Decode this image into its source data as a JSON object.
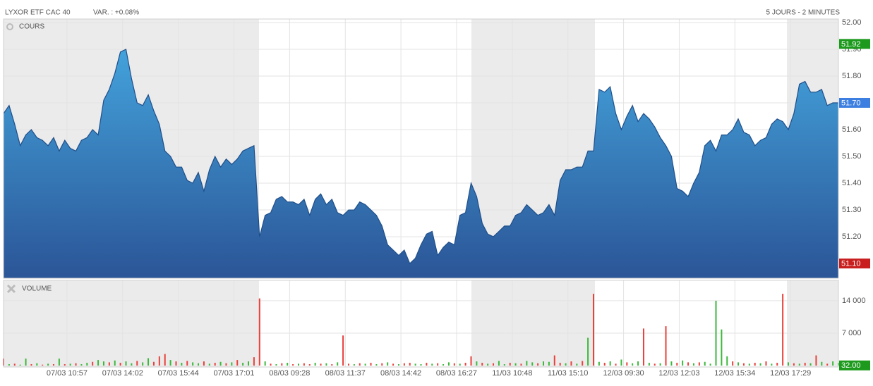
{
  "chart_data": [
    {
      "type": "area",
      "title": "LYXOR ETF CAC 40",
      "subtitle": "VAR. : +0.08%",
      "annotation": "5 JOURS - 2 MINUTES",
      "panel_label": "COURS",
      "color": "#1f4f8a",
      "grid": true,
      "values": [
        51.66,
        51.69,
        51.62,
        51.54,
        51.58,
        51.6,
        51.57,
        51.56,
        51.54,
        51.57,
        51.52,
        51.56,
        51.53,
        51.52,
        51.56,
        51.57,
        51.6,
        51.58,
        51.71,
        51.75,
        51.81,
        51.89,
        51.9,
        51.79,
        51.7,
        51.69,
        51.73,
        51.67,
        51.62,
        51.52,
        51.5,
        51.46,
        51.46,
        51.41,
        51.4,
        51.44,
        51.37,
        51.45,
        51.5,
        51.46,
        51.49,
        51.47,
        51.49,
        51.52,
        51.53,
        51.54,
        51.2,
        51.28,
        51.29,
        51.34,
        51.35,
        51.33,
        51.33,
        51.32,
        51.34,
        51.28,
        51.34,
        51.36,
        51.32,
        51.34,
        51.29,
        51.28,
        51.3,
        51.3,
        51.33,
        51.32,
        51.3,
        51.28,
        51.24,
        51.17,
        51.15,
        51.13,
        51.15,
        51.1,
        51.12,
        51.17,
        51.21,
        51.22,
        51.13,
        51.16,
        51.18,
        51.17,
        51.28,
        51.29,
        51.4,
        51.35,
        51.25,
        51.21,
        51.2,
        51.22,
        51.24,
        51.24,
        51.28,
        51.29,
        51.32,
        51.3,
        51.28,
        51.29,
        51.32,
        51.28,
        51.41,
        51.45,
        51.45,
        51.46,
        51.46,
        51.52,
        51.52,
        51.75,
        51.74,
        51.76,
        51.66,
        51.6,
        51.65,
        51.69,
        51.63,
        51.66,
        51.64,
        51.61,
        51.57,
        51.54,
        51.5,
        51.38,
        51.37,
        51.35,
        51.4,
        51.44,
        51.54,
        51.56,
        51.52,
        51.58,
        51.58,
        51.6,
        51.64,
        51.59,
        51.58,
        51.54,
        51.56,
        51.57,
        51.62,
        51.64,
        51.63,
        51.6,
        51.66,
        51.77,
        51.78,
        51.74,
        51.74,
        51.75,
        51.69,
        51.7,
        51.7
      ],
      "xlim": [
        0,
        150
      ],
      "xticks": [
        {
          "value": 11.4,
          "label": "07/03 10:57"
        },
        {
          "value": 21.4,
          "label": "07/03 14:02"
        },
        {
          "value": 31.4,
          "label": "07/03 15:44"
        },
        {
          "value": 41.4,
          "label": "07/03 17:01"
        },
        {
          "value": 51.4,
          "label": "08/03 09:28"
        },
        {
          "value": 61.4,
          "label": "08/03 11:37"
        },
        {
          "value": 71.4,
          "label": "08/03 14:42"
        },
        {
          "value": 81.4,
          "label": "08/03 16:27"
        },
        {
          "value": 91.4,
          "label": "11/03 10:48"
        },
        {
          "value": 101.4,
          "label": "11/03 15:10"
        },
        {
          "value": 111.4,
          "label": "12/03 09:30"
        },
        {
          "value": 121.4,
          "label": "12/03 12:03"
        },
        {
          "value": 131.4,
          "label": "12/03 15:34"
        },
        {
          "value": 141.4,
          "label": "12/03 17:29"
        }
      ],
      "ylim": [
        51.045,
        52.013
      ],
      "yticks": [
        {
          "value": 52.0,
          "label": "52.00"
        },
        {
          "value": 51.9,
          "label": "51.90"
        },
        {
          "value": 51.8,
          "label": "51.80"
        },
        {
          "value": 51.7,
          "label": "51.70"
        },
        {
          "value": 51.6,
          "label": "51.60"
        },
        {
          "value": 51.5,
          "label": "51.50"
        },
        {
          "value": 51.4,
          "label": "51.40"
        },
        {
          "value": 51.3,
          "label": "51.30"
        },
        {
          "value": 51.2,
          "label": "51.20"
        },
        {
          "value": 51.1,
          "label": "51.10"
        }
      ],
      "markers": [
        {
          "value": 51.92,
          "label": "51.92",
          "color": "#1d9a1d"
        },
        {
          "value": 51.7,
          "label": "51.70",
          "color": "#3d7fe0"
        },
        {
          "value": 51.1,
          "label": "51.10",
          "color": "#c81e1e"
        }
      ]
    },
    {
      "type": "bar",
      "panel_label": "VOLUME",
      "up_color": "#3cb83c",
      "down_color": "#e8413c",
      "grid": true,
      "values": [
        1500,
        300,
        400,
        200,
        1500,
        300,
        500,
        200,
        400,
        300,
        1500,
        300,
        400,
        500,
        300,
        600,
        800,
        1200,
        900,
        700,
        1100,
        600,
        900,
        500,
        1000,
        700,
        1600,
        800,
        2000,
        2500,
        1200,
        900,
        600,
        1000,
        700,
        500,
        900,
        400,
        600,
        800,
        500,
        700,
        1200,
        600,
        900,
        1800,
        14500,
        900,
        400,
        300,
        500,
        600,
        300,
        400,
        500,
        300,
        600,
        400,
        500,
        300,
        700,
        6500,
        400,
        300,
        500,
        400,
        600,
        300,
        500,
        700,
        400,
        300,
        500,
        600,
        400,
        300,
        600,
        400,
        500,
        300,
        700,
        500,
        400,
        600,
        2000,
        900,
        600,
        400,
        500,
        1000,
        300,
        600,
        500,
        400,
        1000,
        700,
        500,
        900,
        800,
        2200,
        600,
        500,
        900,
        400,
        1000,
        6000,
        15500,
        800,
        600,
        900,
        400,
        1300,
        700,
        500,
        900,
        8000,
        600,
        400,
        500,
        8500,
        900,
        600,
        1100,
        700,
        500,
        700,
        800,
        400,
        14000,
        7800,
        2000,
        900,
        700,
        500,
        400,
        600,
        500,
        900,
        400,
        600,
        15500,
        700,
        500,
        400,
        600,
        500,
        2200,
        800,
        400,
        900,
        600
      ],
      "up": [
        false,
        true,
        false,
        true,
        true,
        false,
        true,
        false,
        true,
        false,
        true,
        false,
        true,
        false,
        true,
        true,
        false,
        true,
        true,
        false,
        true,
        false,
        true,
        true,
        false,
        true,
        true,
        false,
        false,
        false,
        true,
        false,
        true,
        false,
        true,
        true,
        false,
        true,
        false,
        true,
        false,
        true,
        false,
        true,
        true,
        false,
        false,
        true,
        false,
        true,
        false,
        true,
        false,
        true,
        false,
        false,
        true,
        false,
        true,
        false,
        true,
        false,
        false,
        true,
        false,
        true,
        false,
        true,
        false,
        true,
        false,
        true,
        false,
        false,
        true,
        true,
        false,
        true,
        false,
        true,
        true,
        false,
        true,
        false,
        false,
        true,
        false,
        true,
        false,
        true,
        true,
        false,
        true,
        false,
        true,
        true,
        false,
        true,
        true,
        false,
        false,
        true,
        false,
        true,
        false,
        true,
        false,
        true,
        false,
        true,
        false,
        true,
        false,
        true,
        true,
        false,
        true,
        false,
        true,
        false,
        true,
        false,
        true,
        false,
        true,
        false,
        true,
        true,
        true,
        true,
        true,
        false,
        true,
        false,
        true,
        false,
        true,
        false,
        true,
        false,
        false,
        true,
        false,
        true,
        false,
        true,
        false,
        true,
        false,
        true,
        true
      ],
      "ylim": [
        0,
        18400
      ],
      "yticks": [
        {
          "value": 14000,
          "label": "14 000"
        },
        {
          "value": 7000,
          "label": "7 000"
        }
      ],
      "markers": [
        {
          "value": 32,
          "label": "32.00",
          "color": "#1d9a1d"
        }
      ]
    }
  ]
}
